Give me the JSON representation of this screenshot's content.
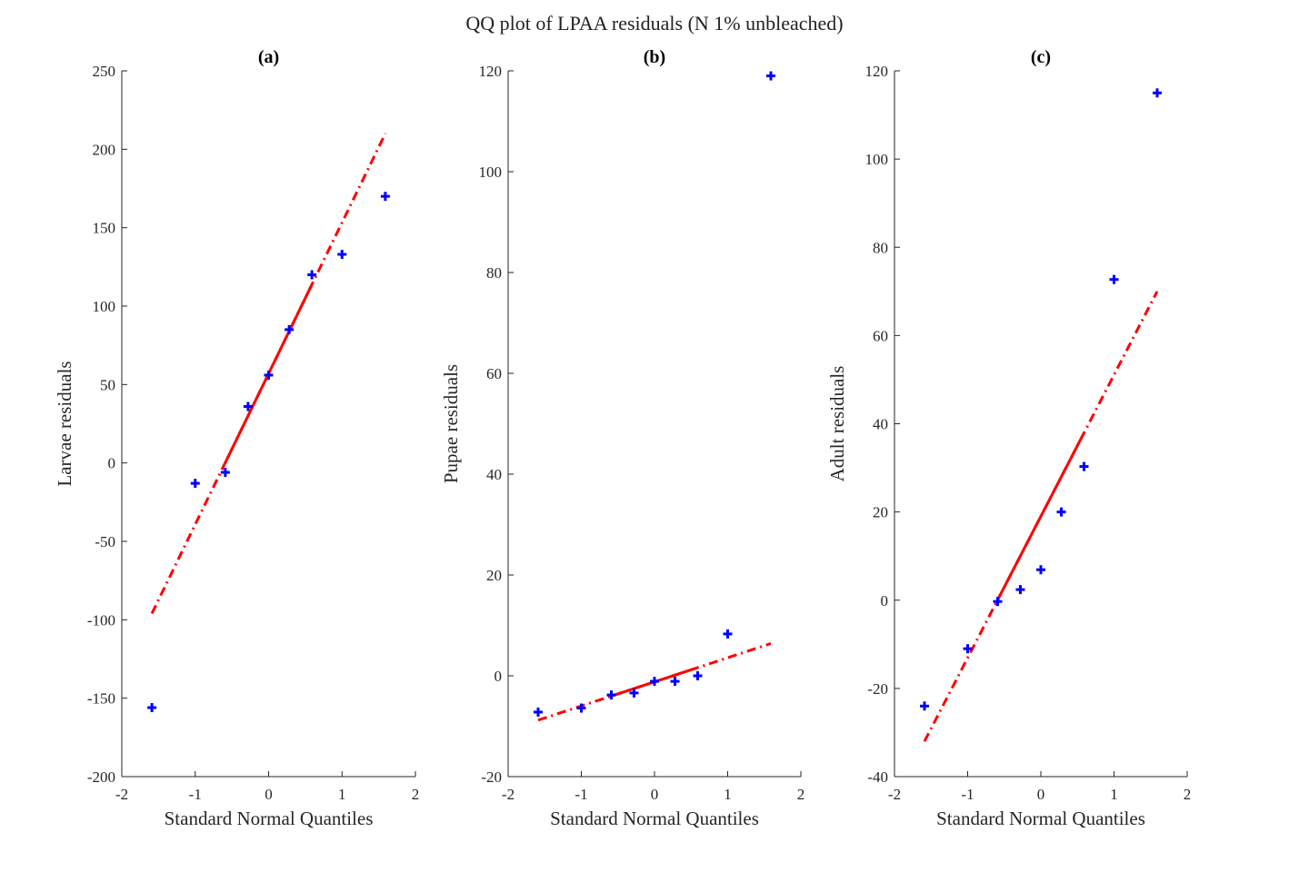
{
  "figure": {
    "title": "QQ plot of LPAA residuals (N 1% unbleached)"
  },
  "colors": {
    "points": "#0000ff",
    "line": "#ff0000",
    "axis": "#262626"
  },
  "chart_data": [
    {
      "type": "scatter",
      "panel": "(a)",
      "title": "(a)",
      "xlabel": "Standard Normal Quantiles",
      "ylabel": "Larvae residuals",
      "xlim": [
        -2,
        2
      ],
      "ylim": [
        -200,
        250
      ],
      "xticks": [
        -2,
        -1,
        0,
        1,
        2
      ],
      "yticks": [
        -200,
        -150,
        -100,
        -50,
        0,
        50,
        100,
        150,
        200,
        250
      ],
      "points": {
        "x": [
          -1.59,
          -1.0,
          -0.59,
          -0.28,
          0.0,
          0.28,
          0.59,
          1.0,
          1.59
        ],
        "y": [
          -156,
          -13,
          -6,
          36,
          56,
          85,
          120,
          133,
          170
        ]
      },
      "fit_line": {
        "x": [
          -1.59,
          1.59
        ],
        "y": [
          -96,
          210
        ],
        "solid_x_range": [
          -0.59,
          0.59
        ]
      }
    },
    {
      "type": "scatter",
      "panel": "(b)",
      "title": "(b)",
      "xlabel": "Standard Normal Quantiles",
      "ylabel": "Pupae residuals",
      "xlim": [
        -2,
        2
      ],
      "ylim": [
        -20,
        120
      ],
      "xticks": [
        -2,
        -1,
        0,
        1,
        2
      ],
      "yticks": [
        -20,
        0,
        20,
        40,
        60,
        80,
        100,
        120
      ],
      "points": {
        "x": [
          -1.59,
          -1.0,
          -0.59,
          -0.28,
          0.0,
          0.28,
          0.59,
          1.0,
          1.59
        ],
        "y": [
          -7.2,
          -6.4,
          -3.8,
          -3.4,
          -1.1,
          -1.1,
          0.0,
          8.3,
          119
        ]
      },
      "fit_line": {
        "x": [
          -1.59,
          1.59
        ],
        "y": [
          -8.8,
          6.4
        ],
        "solid_x_range": [
          -0.59,
          0.59
        ]
      }
    },
    {
      "type": "scatter",
      "panel": "(c)",
      "title": "(c)",
      "xlabel": "Standard Normal Quantiles",
      "ylabel": "Adult residuals",
      "xlim": [
        -2,
        2
      ],
      "ylim": [
        -40,
        120
      ],
      "xticks": [
        -2,
        -1,
        0,
        1,
        2
      ],
      "yticks": [
        -40,
        -20,
        0,
        20,
        40,
        60,
        80,
        100,
        120
      ],
      "points": {
        "x": [
          -1.59,
          -1.0,
          -0.59,
          -0.28,
          0.0,
          0.28,
          0.59,
          1.0,
          1.59
        ],
        "y": [
          -24,
          -11,
          -0.3,
          2.4,
          6.9,
          20,
          30.3,
          72.7,
          115
        ]
      },
      "fit_line": {
        "x": [
          -1.59,
          1.59
        ],
        "y": [
          -32,
          70
        ],
        "solid_x_range": [
          -0.59,
          0.59
        ]
      }
    }
  ]
}
